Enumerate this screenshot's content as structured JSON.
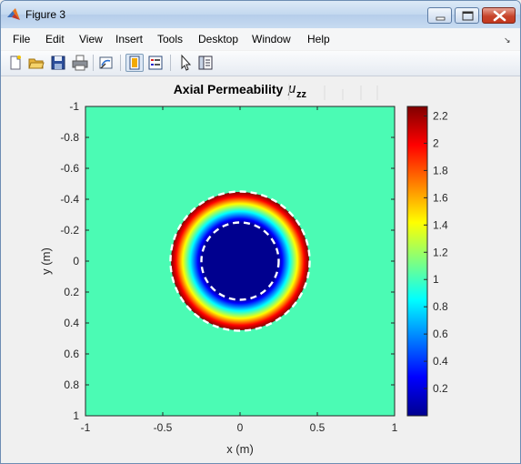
{
  "window": {
    "title": "Figure 3",
    "buttons": {
      "minimize": "minimize",
      "maximize": "maximize",
      "close": "close"
    }
  },
  "menu": [
    "File",
    "Edit",
    "View",
    "Insert",
    "Tools",
    "Desktop",
    "Window",
    "Help"
  ],
  "toolbar": {
    "icons": [
      "new-figure-icon",
      "open-file-icon",
      "save-icon",
      "print-icon",
      "link-plot-icon",
      "insert-colorbar-icon",
      "insert-legend-icon",
      "pointer-icon",
      "property-editor-icon"
    ]
  },
  "plot": {
    "title": "Axial Permeability",
    "title_symbol": "μ",
    "title_subscript": "zz",
    "xlabel": "x (m)",
    "ylabel": "y (m)",
    "xticks": [
      "-1",
      "-0.5",
      "0",
      "0.5",
      "1"
    ],
    "yticks": [
      "-1",
      "-0.8",
      "-0.6",
      "-0.4",
      "-0.2",
      "0",
      "0.2",
      "0.4",
      "0.6",
      "0.8",
      "1"
    ],
    "colorbar_ticks": [
      "2.2",
      "2",
      "1.8",
      "1.6",
      "1.4",
      "1.2",
      "1",
      "0.8",
      "0.6",
      "0.4",
      "0.2"
    ],
    "colormap": "jet",
    "background_color": "#4bfbb4"
  },
  "chart_data": {
    "type": "heatmap",
    "title": "Axial Permeability μzz",
    "xlabel": "x (m)",
    "ylabel": "y (m)",
    "xlim": [
      -1,
      1
    ],
    "ylim": [
      -1,
      1
    ],
    "y_direction": "reversed",
    "clim": [
      0,
      2.27
    ],
    "background_value": 1,
    "inner_radius": 0.25,
    "outer_radius": 0.45,
    "inner_value": 0,
    "shell_value_at_inner_radius": 0,
    "shell_value_at_outer_radius": 2.27,
    "boundaries": [
      {
        "radius": 0.25,
        "style": "dashed",
        "color": "#ffffff"
      },
      {
        "radius": 0.45,
        "style": "dashed",
        "color": "#ffffff"
      }
    ]
  }
}
